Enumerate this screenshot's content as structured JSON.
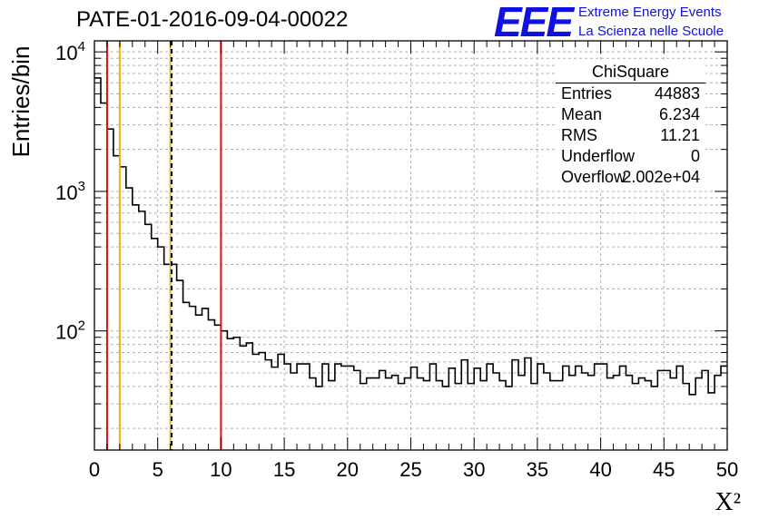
{
  "title": "PATE-01-2016-09-04-00022",
  "logo": {
    "mark": "EEE",
    "line1": "Extreme Energy Events",
    "line2": "La Scienza nelle Scuole"
  },
  "stats": {
    "name": "ChiSquare",
    "rows": [
      {
        "label": "Entries",
        "value": "44883"
      },
      {
        "label": "Mean",
        "value": "6.234"
      },
      {
        "label": "RMS",
        "value": "11.21"
      },
      {
        "label": "Underflow",
        "value": "0"
      },
      {
        "label": "Overflow",
        "value": "2.002e+04"
      }
    ]
  },
  "chart_data": {
    "type": "histogram",
    "xlabel": "X²",
    "ylabel": "Entries/bin",
    "xlim": [
      0,
      50
    ],
    "ylim": [
      14,
      12000
    ],
    "yscale": "log",
    "grid": true,
    "xticks": [
      "0",
      "5",
      "10",
      "15",
      "20",
      "25",
      "30",
      "35",
      "40",
      "45",
      "50"
    ],
    "yticks": [
      {
        "base": "10",
        "exp": "2",
        "value": 100
      },
      {
        "base": "10",
        "exp": "3",
        "value": 1000
      },
      {
        "base": "10",
        "exp": "4",
        "value": 10000
      }
    ],
    "bin_width": 0.5,
    "bin_values": [
      6500,
      4300,
      2800,
      1800,
      1500,
      1060,
      800,
      720,
      580,
      460,
      400,
      300,
      300,
      230,
      160,
      150,
      130,
      145,
      120,
      110,
      100,
      88,
      90,
      78,
      82,
      68,
      70,
      62,
      55,
      68,
      58,
      50,
      58,
      58,
      46,
      40,
      58,
      44,
      58,
      56,
      56,
      52,
      42,
      46,
      46,
      52,
      46,
      48,
      42,
      46,
      55,
      46,
      44,
      58,
      44,
      40,
      54,
      42,
      62,
      42,
      54,
      44,
      58,
      50,
      44,
      40,
      62,
      48,
      64,
      42,
      58,
      50,
      44,
      44,
      56,
      48,
      56,
      50,
      48,
      58,
      58,
      46,
      48,
      56,
      48,
      42,
      46,
      44,
      40,
      52,
      52,
      46,
      56,
      42,
      35,
      46,
      52,
      36,
      48,
      56
    ],
    "bins_end_x": 49.5,
    "vlines": [
      {
        "x": 1,
        "color": "#dd1111",
        "style": "solid"
      },
      {
        "x": 2,
        "color": "#f0b400",
        "style": "solid"
      },
      {
        "x": 6,
        "color": "#f0b400",
        "style": "solid"
      },
      {
        "x": 6.1,
        "color": "#000000",
        "style": "dashed"
      },
      {
        "x": 10,
        "color": "#dd1111",
        "style": "solid"
      }
    ]
  }
}
